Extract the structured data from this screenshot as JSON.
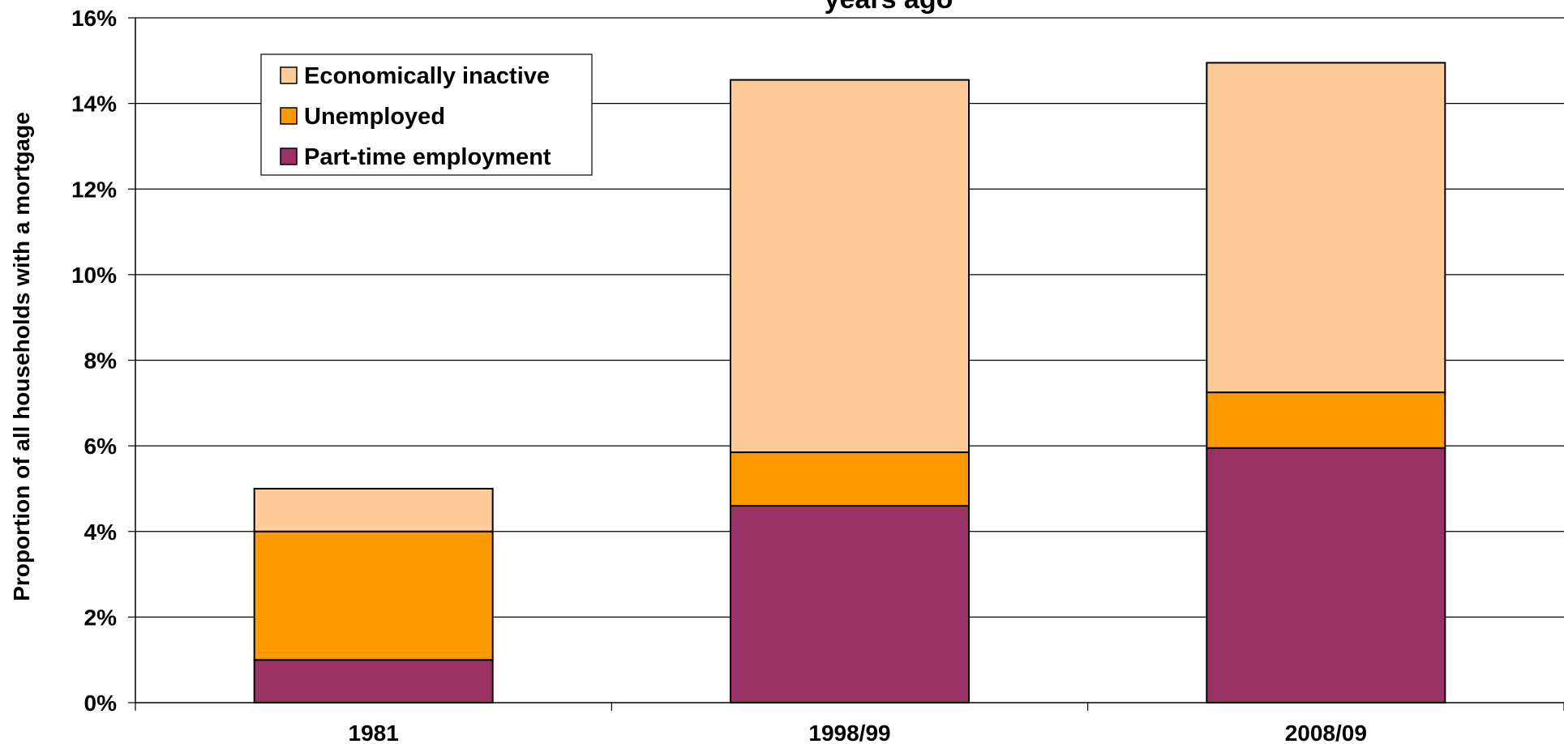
{
  "chart_data": {
    "type": "bar",
    "stacked": true,
    "title": "years ago",
    "ylabel": "Proportion of all households with a mortgage",
    "xlabel": "",
    "categories": [
      "1981",
      "1998/99",
      "2008/09"
    ],
    "ylim": [
      0,
      16
    ],
    "y_ticks": [
      "0%",
      "2%",
      "4%",
      "6%",
      "8%",
      "10%",
      "12%",
      "14%",
      "16%"
    ],
    "grid": true,
    "legend_position": "top-left",
    "series": [
      {
        "name": "Part-time employment",
        "color": "#993366",
        "values": [
          1.0,
          4.6,
          5.95
        ]
      },
      {
        "name": "Unemployed",
        "color": "#FF9900",
        "values": [
          3.0,
          1.25,
          1.3
        ]
      },
      {
        "name": "Economically inactive",
        "color": "#FFCC99",
        "values": [
          1.0,
          8.7,
          7.7
        ]
      }
    ],
    "legend_order": [
      "Economically inactive",
      "Unemployed",
      "Part-time employment"
    ]
  }
}
